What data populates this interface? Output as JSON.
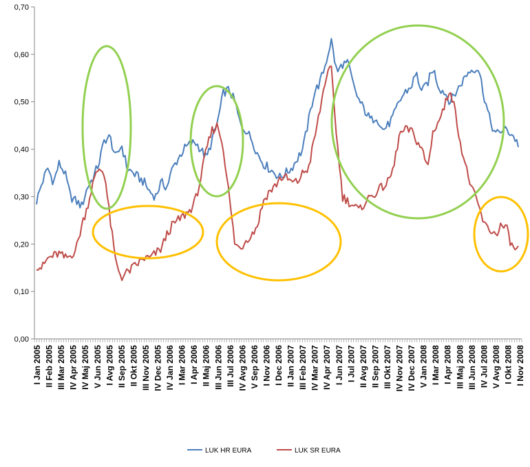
{
  "chart_data": {
    "type": "line",
    "title": "",
    "xlabel": "",
    "ylabel": "",
    "ylim": [
      0,
      0.7
    ],
    "y_ticks": [
      "0,00",
      "0,10",
      "0,20",
      "0,30",
      "0,40",
      "0,50",
      "0,60",
      "0,70"
    ],
    "x_tick_labels": [
      "I Jan 2005",
      "II Feb 2005",
      "III Mar 2005",
      "IV Apr 2005",
      "IV Maj 2005",
      "V Jun 2005",
      "I Avg 2005",
      "II Sep 2005",
      "II Okt 2005",
      "III Nov 2005",
      "IV Dec 2005",
      "IV Jan 2006",
      "I Mar 2006",
      "I Apr 2006",
      "II Maj 2006",
      "III Jun 2006",
      "III Jul 2006",
      "IV Avg 2006",
      "V Sep 2006",
      "I Nov 2006",
      "I Dec 2006",
      "II Jan 2007",
      "III Feb 2007",
      "IV Mar 2007",
      "IV Apr 2007",
      "I Jun 2007",
      "I Jul 2007",
      "II Avg 2007",
      "II Sep 2007",
      "III Okt 2007",
      "IV Nov 2007",
      "IV Dec 2007",
      "V Jan 2008",
      "I Mar 2008",
      "I Apr 2008",
      "III Maj 2008",
      "III Jun 2008",
      "IV Jul 2008",
      "V Avg 2008",
      "I Okt 2008",
      "I Nov 2008"
    ],
    "grid": false,
    "legend_position": "bottom",
    "series": [
      {
        "name": "LUK HR EURA",
        "color": "#4a7ebb",
        "values": [
          0.29,
          0.33,
          0.36,
          0.33,
          0.37,
          0.35,
          0.3,
          0.29,
          0.28,
          0.32,
          0.34,
          0.37,
          0.42,
          0.425,
          0.38,
          0.41,
          0.36,
          0.35,
          0.34,
          0.33,
          0.31,
          0.3,
          0.33,
          0.32,
          0.36,
          0.38,
          0.4,
          0.41,
          0.415,
          0.4,
          0.38,
          0.42,
          0.46,
          0.52,
          0.525,
          0.5,
          0.45,
          0.44,
          0.42,
          0.39,
          0.37,
          0.36,
          0.35,
          0.34,
          0.35,
          0.36,
          0.38,
          0.4,
          0.46,
          0.52,
          0.54,
          0.58,
          0.63,
          0.56,
          0.58,
          0.58,
          0.53,
          0.5,
          0.48,
          0.46,
          0.47,
          0.44,
          0.45,
          0.47,
          0.5,
          0.52,
          0.53,
          0.56,
          0.52,
          0.54,
          0.57,
          0.53,
          0.52,
          0.5,
          0.52,
          0.54,
          0.56,
          0.57,
          0.57,
          0.51,
          0.46,
          0.43,
          0.44,
          0.44,
          0.43,
          0.41
        ]
      },
      {
        "name": "LUK SR EURA",
        "color": "#be4b48",
        "values": [
          0.155,
          0.15,
          0.17,
          0.175,
          0.18,
          0.17,
          0.175,
          0.19,
          0.24,
          0.28,
          0.33,
          0.36,
          0.35,
          0.25,
          0.16,
          0.13,
          0.14,
          0.15,
          0.16,
          0.17,
          0.17,
          0.18,
          0.19,
          0.22,
          0.24,
          0.25,
          0.26,
          0.27,
          0.29,
          0.34,
          0.4,
          0.44,
          0.45,
          0.4,
          0.3,
          0.2,
          0.19,
          0.21,
          0.22,
          0.24,
          0.29,
          0.31,
          0.32,
          0.34,
          0.34,
          0.33,
          0.33,
          0.35,
          0.36,
          0.42,
          0.48,
          0.55,
          0.57,
          0.42,
          0.3,
          0.29,
          0.28,
          0.27,
          0.29,
          0.3,
          0.31,
          0.32,
          0.33,
          0.36,
          0.43,
          0.44,
          0.44,
          0.42,
          0.4,
          0.36,
          0.44,
          0.46,
          0.49,
          0.53,
          0.47,
          0.4,
          0.35,
          0.31,
          0.28,
          0.24,
          0.23,
          0.22,
          0.24,
          0.23,
          0.19,
          0.19
        ]
      }
    ]
  },
  "annotations": {
    "green_ellipse_color": "#92d050",
    "yellow_ellipse_color": "#ffc000"
  }
}
